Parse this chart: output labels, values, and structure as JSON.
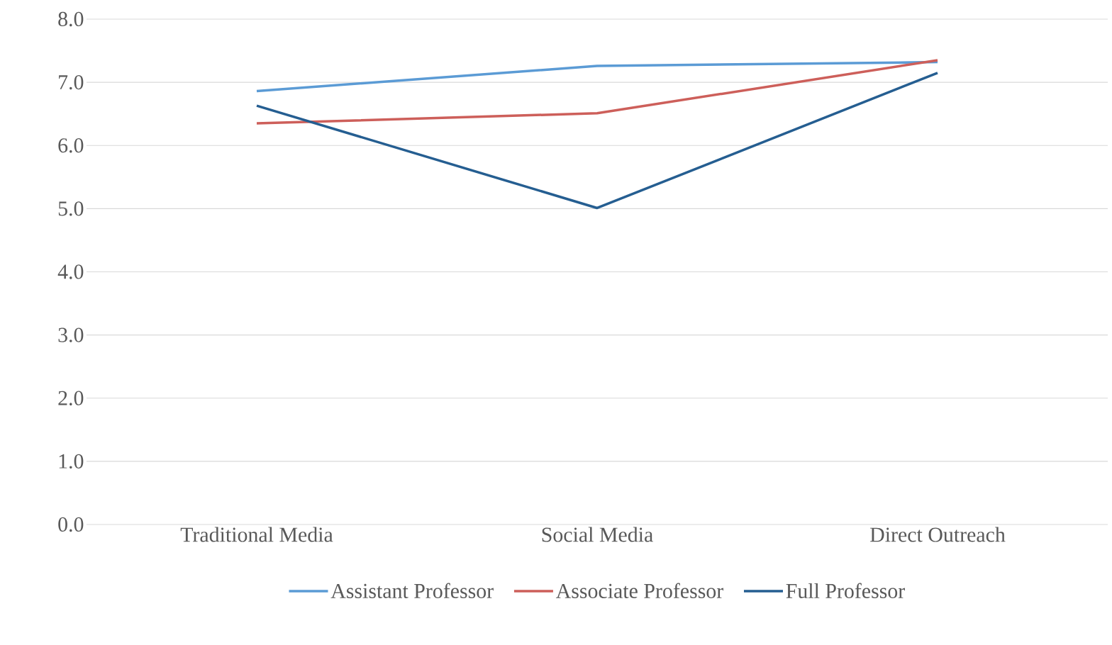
{
  "chart_data": {
    "type": "line",
    "categories": [
      "Traditional Media",
      "Social Media",
      "Direct Outreach"
    ],
    "series": [
      {
        "name": "Assistant Professor",
        "color": "#5b9bd5",
        "values": [
          6.86,
          7.26,
          7.32
        ]
      },
      {
        "name": "Associate Professor",
        "color": "#cd5f5a",
        "values": [
          6.35,
          6.51,
          7.35
        ]
      },
      {
        "name": "Full Professor",
        "color": "#255e91",
        "values": [
          6.63,
          5.01,
          7.15
        ]
      }
    ],
    "ylim": [
      0,
      8
    ],
    "yticks": [
      {
        "value": 0,
        "label": "0.0"
      },
      {
        "value": 1,
        "label": "1.0"
      },
      {
        "value": 2,
        "label": "2.0"
      },
      {
        "value": 3,
        "label": "3.0"
      },
      {
        "value": 4,
        "label": "4.0"
      },
      {
        "value": 5,
        "label": "5.0"
      },
      {
        "value": 6,
        "label": "6.0"
      },
      {
        "value": 7,
        "label": "7.0"
      },
      {
        "value": 8,
        "label": "8.0"
      }
    ],
    "grid": "y",
    "legend": "bottom",
    "marker": "none",
    "line_style": "solid"
  }
}
